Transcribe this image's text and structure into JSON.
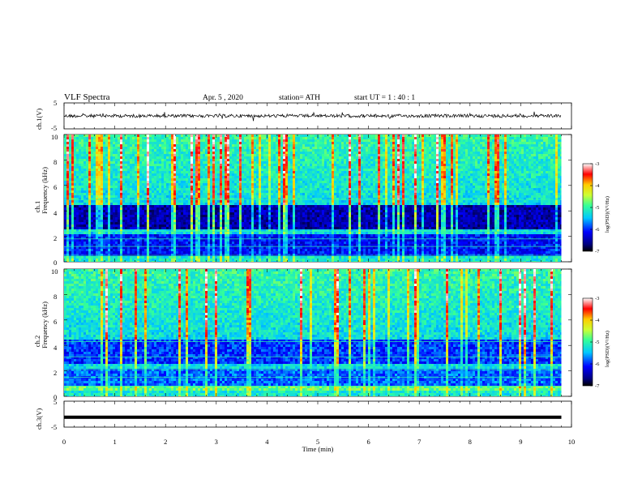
{
  "header": {
    "title": "VLF  Spectra",
    "date": "Apr. 5  , 2020",
    "station": "station= ATH",
    "start": "start  UT  =   1  : 40 : 1"
  },
  "colors": {
    "waveform": "#000000",
    "colormap": [
      "#000000",
      "#00007f",
      "#0000ff",
      "#00c8ff",
      "#33ff99",
      "#ccff33",
      "#ffcc00",
      "#ff0000",
      "#ffffff"
    ]
  },
  "chart_data": [
    {
      "type": "line",
      "panel": "ch1-waveform",
      "ylabel": "ch.1(V)",
      "ylim": [
        -5,
        5
      ],
      "yticks": [
        "5",
        "-5"
      ],
      "xlim": [
        0,
        10
      ],
      "series": [
        {
          "description_level_V": 0
        }
      ]
    },
    {
      "type": "heatmap",
      "panel": "ch1-spectrogram",
      "ylabel": "ch.1\nFrequency (kHz)",
      "ylabel_lines": [
        "ch.1",
        "Frequency  (kHz)"
      ],
      "ylim": [
        0,
        10
      ],
      "yticks": [
        "0",
        "2",
        "4",
        "6",
        "8",
        "10"
      ],
      "xlim": [
        0,
        10
      ],
      "data_end_min": 9.8,
      "colorbar": {
        "label": "log(PSD)(V²/Hz)",
        "range": [
          -7,
          -3
        ],
        "ticks": [
          "-3",
          "-4",
          "-5",
          "-6",
          "-7"
        ]
      }
    },
    {
      "type": "heatmap",
      "panel": "ch2-spectrogram",
      "ylabel": "ch.2\nFrequency (kHz)",
      "ylabel_lines": [
        "ch.2",
        "Frequency  (kHz)"
      ],
      "ylim": [
        0,
        10
      ],
      "yticks": [
        "0",
        "2",
        "4",
        "6",
        "8",
        "10"
      ],
      "xlim": [
        0,
        10
      ],
      "data_end_min": 9.8,
      "colorbar": {
        "label": "log(PSD)(V²/Hz)",
        "range": [
          -7,
          -3
        ],
        "ticks": [
          "-3",
          "-4",
          "-5",
          "-6",
          "-7"
        ]
      }
    },
    {
      "type": "line",
      "panel": "ch3-waveform",
      "ylabel": "ch.3(V)",
      "ylim": [
        -5,
        5
      ],
      "yticks": [
        "5",
        "-5"
      ],
      "xlim": [
        0,
        10
      ],
      "series": [
        {
          "constant_V": -1.2,
          "end_min": 9.8
        }
      ]
    }
  ],
  "xaxis": {
    "label": "Time  (min)",
    "ticks": [
      "0",
      "1",
      "2",
      "3",
      "4",
      "5",
      "6",
      "7",
      "8",
      "9",
      "10"
    ],
    "range": [
      0,
      10
    ]
  }
}
